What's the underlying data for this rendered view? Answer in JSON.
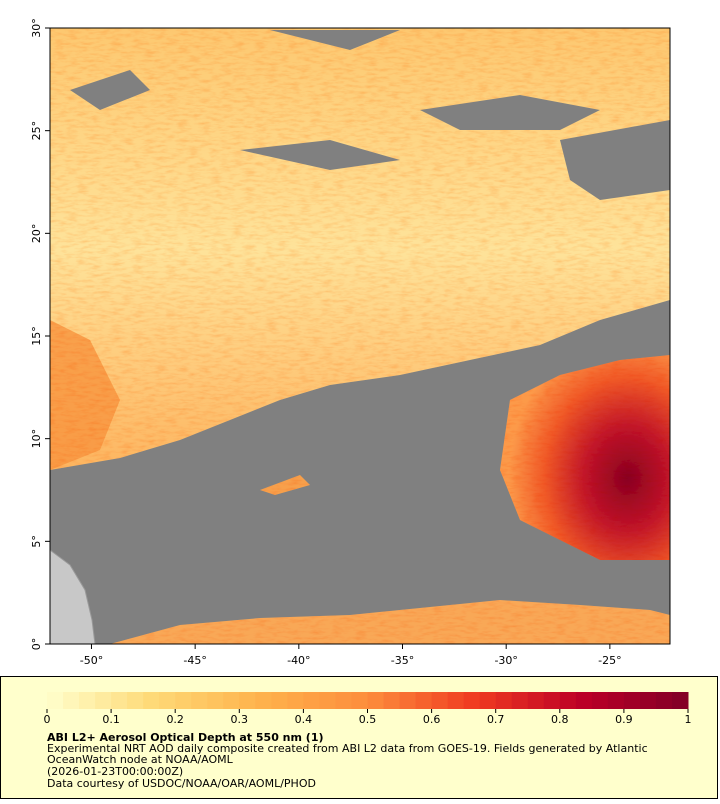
{
  "map": {
    "xlim": [
      -52,
      -22.1
    ],
    "ylim": [
      0,
      30
    ],
    "xticks": [
      {
        "value": -50,
        "label": "-50°"
      },
      {
        "value": -45,
        "label": "-45°"
      },
      {
        "value": -40,
        "label": "-40°"
      },
      {
        "value": -35,
        "label": "-35°"
      },
      {
        "value": -30,
        "label": "-30°"
      },
      {
        "value": -25,
        "label": "-25°"
      }
    ],
    "yticks": [
      {
        "value": 0,
        "label": "0°"
      },
      {
        "value": 5,
        "label": "5°"
      },
      {
        "value": 10,
        "label": "10°"
      },
      {
        "value": 15,
        "label": "15°"
      },
      {
        "value": 20,
        "label": "20°"
      },
      {
        "value": 25,
        "label": "25°"
      },
      {
        "value": 30,
        "label": "30°"
      }
    ]
  },
  "colorbar": {
    "lim": [
      0,
      1
    ],
    "ticks": [
      0,
      0.1,
      0.2,
      0.3,
      0.4,
      0.5,
      0.6,
      0.7,
      0.8,
      0.9,
      1
    ],
    "colors": [
      "#ffffcc",
      "#fed976",
      "#feb24c",
      "#fd8d3c",
      "#f03b20",
      "#bd0026",
      "#800026"
    ]
  },
  "caption": {
    "title": "ABI L2+ Aerosol Optical Depth at 550 nm (1)",
    "lines": [
      "Experimental NRT AOD daily composite created from ABI L2 data from GOES-19. Fields generated by Atlantic",
      "OceanWatch node at NOAA/AOML",
      "(2026-01-23T00:00:00Z)",
      "Data courtesy of USDOC/NOAA/OAR/AOML/PHOD"
    ]
  }
}
